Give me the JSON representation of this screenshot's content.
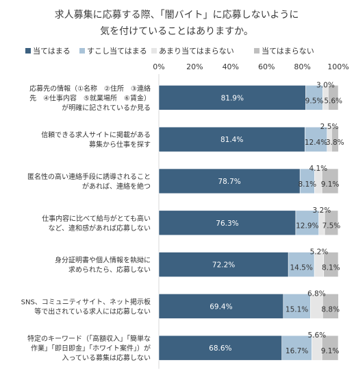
{
  "chart_data": {
    "type": "bar",
    "orientation": "horizontal",
    "stacked": true,
    "title": [
      "求人募集に応募する際、「闇バイト」に応募しないように",
      "気を付けていることはありますか。"
    ],
    "xlim": [
      0,
      100
    ],
    "xticks": [
      "0%",
      "20%",
      "40%",
      "60%",
      "80%",
      "100%"
    ],
    "grid": false,
    "legend_position": "top",
    "categories": [
      [
        "応募先の情報（①名称　②住所　③連絡",
        "先　④仕事内容　⑤就業場所　⑥賃金）",
        "が明確に記されているか見る"
      ],
      [
        "信頼できる求人サイトに掲載がある",
        "募集から仕事を探す"
      ],
      [
        "匿名性の高い連絡手段に誘導されること",
        "があれば、連絡を絶つ"
      ],
      [
        "仕事内容に比べて給与がとても高い",
        "など、違和感があれば応募しない"
      ],
      [
        "身分証明書や個人情報を執拗に",
        "求められたら、応募しない"
      ],
      [
        "SNS、コミュニティサイト、ネット掲示板",
        "等で出されている求人には応募しない"
      ],
      [
        "特定のキーワード（「高額収入」「簡単な",
        "作業」「即日即金」「ホワイト案件」）が",
        "入っている募集は応募しない"
      ]
    ],
    "series": [
      {
        "name": "当てはまる",
        "color": "#3d6180",
        "values": [
          81.9,
          81.4,
          78.7,
          76.3,
          72.2,
          69.4,
          68.6
        ],
        "labels": [
          "81.9%",
          "81.4%",
          "78.7%",
          "76.3%",
          "72.2%",
          "69.4%",
          "68.6%"
        ]
      },
      {
        "name": "すこし当てはまる",
        "color": "#a9c3d8",
        "values": [
          9.5,
          12.4,
          8.1,
          12.9,
          14.5,
          15.1,
          16.7
        ],
        "labels": [
          "9.5%",
          "12.4%",
          "8.1%",
          "12.9%",
          "14.5%",
          "15.1%",
          "16.7%"
        ]
      },
      {
        "name": "あまり当てはまらない",
        "color": "#e6e6e6",
        "values": [
          3.0,
          2.5,
          4.1,
          3.2,
          5.2,
          6.8,
          5.6
        ],
        "labels": [
          "3.0%",
          "2.5%",
          "4.1%",
          "3.2%",
          "5.2%",
          "6.8%",
          "5.6%"
        ]
      },
      {
        "name": "当てはまらない",
        "color": "#bfbfbf",
        "values": [
          5.6,
          3.8,
          9.1,
          7.5,
          8.1,
          8.8,
          9.1
        ],
        "labels": [
          "5.6%",
          "3.8%",
          "9.1%",
          "7.5%",
          "8.1%",
          "8.8%",
          "9.1%"
        ]
      }
    ]
  }
}
